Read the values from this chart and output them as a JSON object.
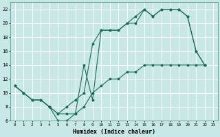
{
  "bg_color": "#c8e8e8",
  "grid_color": "#ffffff",
  "line_color": "#1a6b5a",
  "marker": "*",
  "xlabel": "Humidex (Indice chaleur)",
  "xlim": [
    -0.5,
    23.5
  ],
  "ylim": [
    6,
    23
  ],
  "xticks": [
    0,
    1,
    2,
    3,
    4,
    5,
    6,
    7,
    8,
    9,
    10,
    11,
    12,
    13,
    14,
    15,
    16,
    17,
    18,
    19,
    20,
    21,
    22,
    23
  ],
  "yticks": [
    6,
    8,
    10,
    12,
    14,
    16,
    18,
    20,
    22
  ],
  "line1_x": [
    0,
    1,
    2,
    3,
    4,
    5,
    6,
    7,
    8,
    9,
    10,
    11,
    12,
    13,
    14,
    15,
    16,
    17,
    18,
    19,
    20,
    21,
    22
  ],
  "line1_y": [
    11,
    10,
    9,
    9,
    8,
    6,
    6,
    7,
    14,
    9,
    19,
    19,
    19,
    20,
    21,
    22,
    21,
    22,
    22,
    22,
    21,
    16,
    14
  ],
  "line2_x": [
    0,
    1,
    2,
    3,
    4,
    5,
    6,
    7,
    8,
    9,
    10,
    11,
    12,
    13,
    14,
    15,
    16,
    17,
    18,
    19,
    20,
    21,
    22
  ],
  "line2_y": [
    11,
    10,
    9,
    9,
    8,
    7,
    7,
    7,
    8,
    10,
    11,
    12,
    12,
    13,
    13,
    14,
    14,
    14,
    14,
    14,
    14,
    14,
    14
  ],
  "line3_x": [
    0,
    1,
    2,
    3,
    4,
    5,
    6,
    7,
    8,
    9,
    10,
    11,
    12,
    13,
    14,
    15,
    16,
    17,
    18,
    19,
    20,
    21,
    22
  ],
  "line3_y": [
    11,
    10,
    9,
    9,
    8,
    7,
    8,
    9,
    10,
    17,
    19,
    19,
    19,
    20,
    20,
    22,
    21,
    22,
    22,
    22,
    21,
    16,
    14
  ]
}
